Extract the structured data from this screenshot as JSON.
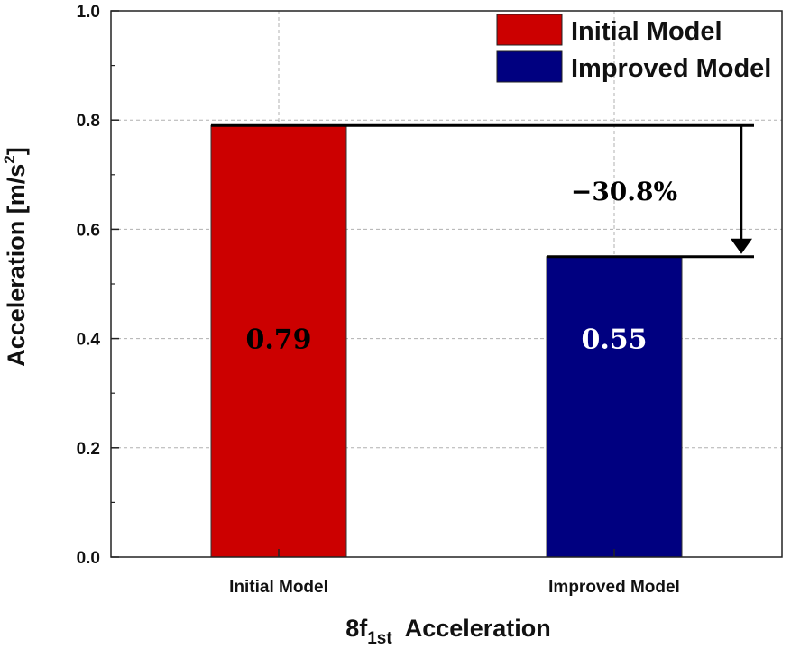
{
  "chart_data": {
    "type": "bar",
    "categories": [
      "Initial Model",
      "Improved Model"
    ],
    "values": [
      0.79,
      0.55
    ],
    "data_labels": [
      "0.79",
      "0.55"
    ],
    "bar_colors": [
      "#cc0000",
      "#000080"
    ],
    "data_label_colors": [
      "#000000",
      "#ffffff"
    ],
    "legend": [
      {
        "label": "Initial Model",
        "color": "#cc0000"
      },
      {
        "label": "Improved Model",
        "color": "#000080"
      }
    ],
    "legend_position": "top-right",
    "xlabel": {
      "main": "8f",
      "sub": "1st",
      "rest": "Acceleration"
    },
    "ylabel": {
      "main": "Acceleration [m/s",
      "sup": "2",
      "close": "]"
    },
    "ylim": [
      0,
      1.0
    ],
    "yticks": [
      "0.0",
      "0.2",
      "0.4",
      "0.6",
      "0.8",
      "1.0"
    ],
    "grid": true,
    "annotation": {
      "text": "−30.8%",
      "from": 0.79,
      "to": 0.55
    }
  }
}
